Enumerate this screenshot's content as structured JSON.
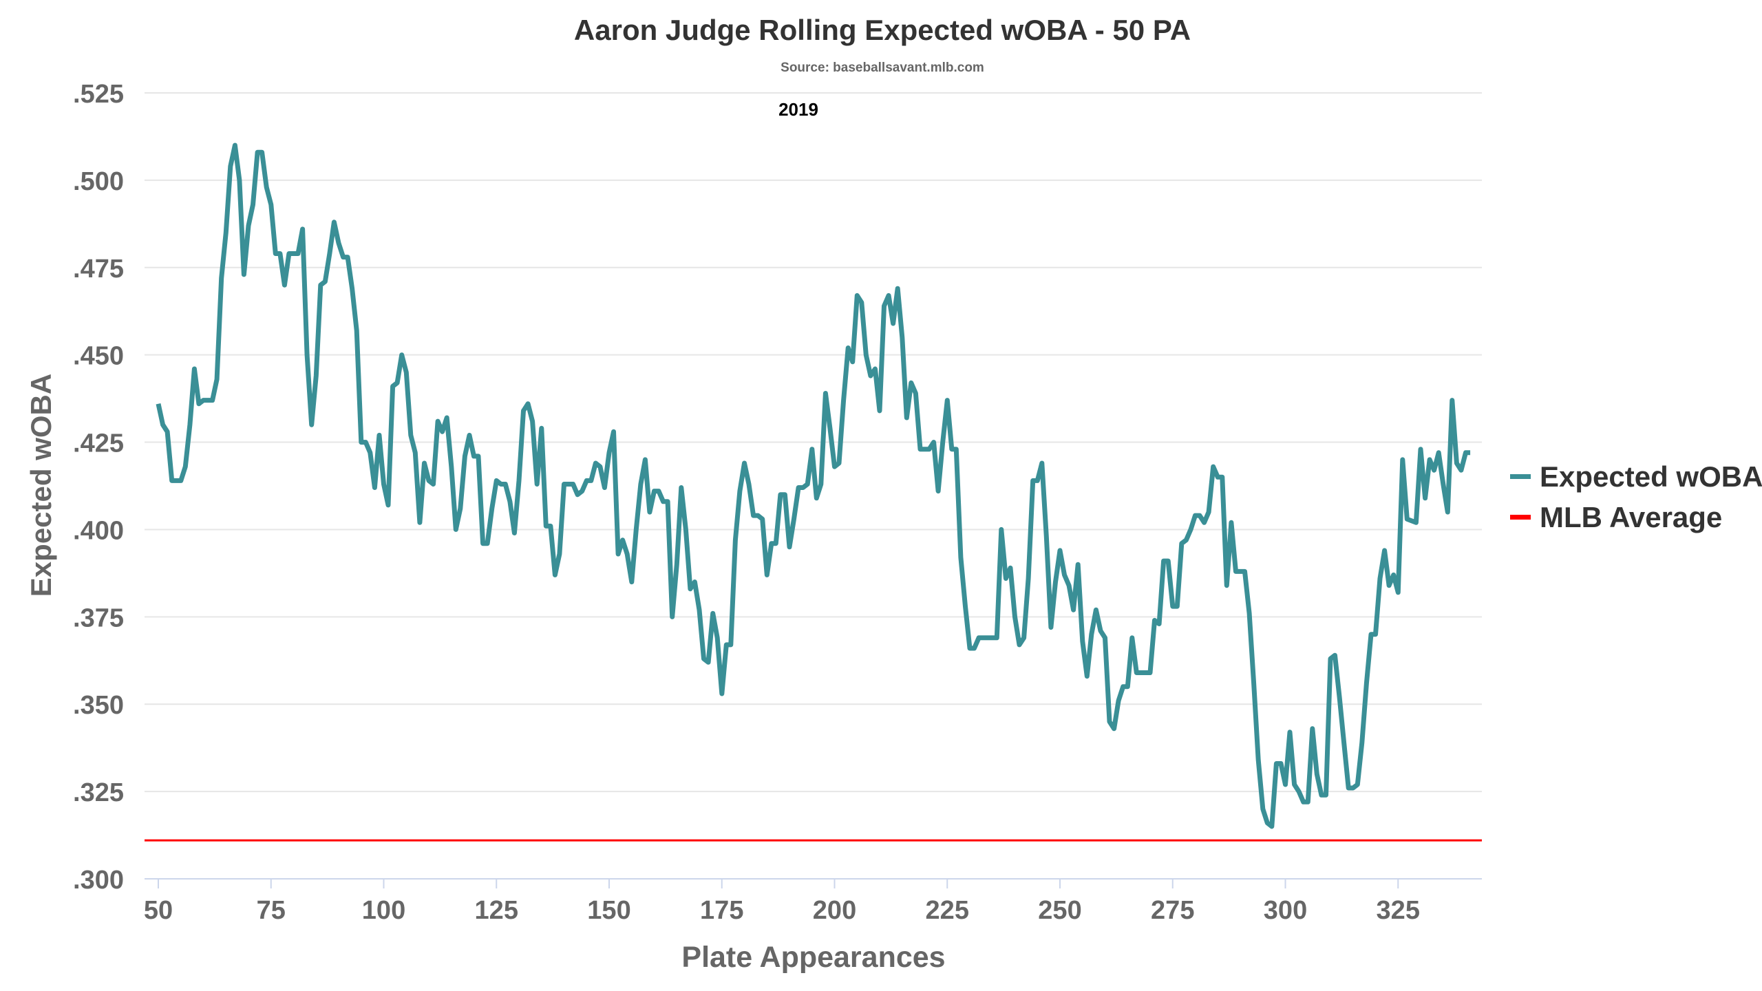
{
  "chart_data": {
    "type": "line",
    "title": "Aaron Judge Rolling Expected wOBA - 50 PA",
    "subtitle": "Source: baseballsavant.mlb.com",
    "annotation": "2019",
    "xlabel": "Plate Appearances",
    "ylabel": "Expected wOBA",
    "xlim": [
      48,
      345
    ],
    "ylim": [
      0.3,
      0.525
    ],
    "x_ticks": [
      50,
      75,
      100,
      125,
      150,
      175,
      200,
      225,
      250,
      275,
      300,
      325
    ],
    "x_tick_labels": [
      "50",
      "75",
      "100",
      "125",
      "150",
      "175",
      "200",
      "225",
      "250",
      "275",
      "300",
      "325"
    ],
    "y_ticks": [
      0.3,
      0.325,
      0.35,
      0.375,
      0.4,
      0.425,
      0.45,
      0.475,
      0.5,
      0.525
    ],
    "y_tick_labels": [
      ".300",
      ".325",
      ".350",
      ".375",
      ".400",
      ".425",
      ".450",
      ".475",
      ".500",
      ".525"
    ],
    "grid": true,
    "legend_position": "right",
    "series": [
      {
        "name": "Expected wOBA",
        "color": "#3a8f96",
        "points": [
          [
            50,
            0.436
          ],
          [
            51,
            0.43
          ],
          [
            52,
            0.428
          ],
          [
            53,
            0.414
          ],
          [
            55,
            0.414
          ],
          [
            56,
            0.418
          ],
          [
            57,
            0.43
          ],
          [
            58,
            0.446
          ],
          [
            59,
            0.436
          ],
          [
            60,
            0.437
          ],
          [
            62,
            0.437
          ],
          [
            63,
            0.443
          ],
          [
            64,
            0.472
          ],
          [
            65,
            0.485
          ],
          [
            66,
            0.504
          ],
          [
            67,
            0.51
          ],
          [
            68,
            0.5
          ],
          [
            69,
            0.473
          ],
          [
            70,
            0.487
          ],
          [
            71,
            0.493
          ],
          [
            72,
            0.508
          ],
          [
            73,
            0.508
          ],
          [
            74,
            0.498
          ],
          [
            75,
            0.493
          ],
          [
            76,
            0.479
          ],
          [
            77,
            0.479
          ],
          [
            78,
            0.47
          ],
          [
            79,
            0.479
          ],
          [
            81,
            0.479
          ],
          [
            82,
            0.486
          ],
          [
            83,
            0.45
          ],
          [
            84,
            0.43
          ],
          [
            85,
            0.444
          ],
          [
            86,
            0.47
          ],
          [
            87,
            0.471
          ],
          [
            88,
            0.479
          ],
          [
            89,
            0.488
          ],
          [
            90,
            0.482
          ],
          [
            91,
            0.478
          ],
          [
            92,
            0.478
          ],
          [
            93,
            0.469
          ],
          [
            94,
            0.457
          ],
          [
            95,
            0.425
          ],
          [
            96,
            0.425
          ],
          [
            97,
            0.422
          ],
          [
            98,
            0.412
          ],
          [
            99,
            0.427
          ],
          [
            100,
            0.413
          ],
          [
            101,
            0.407
          ],
          [
            102,
            0.441
          ],
          [
            103,
            0.442
          ],
          [
            104,
            0.45
          ],
          [
            105,
            0.445
          ],
          [
            106,
            0.427
          ],
          [
            107,
            0.422
          ],
          [
            108,
            0.402
          ],
          [
            109,
            0.419
          ],
          [
            110,
            0.414
          ],
          [
            111,
            0.413
          ],
          [
            112,
            0.431
          ],
          [
            113,
            0.428
          ],
          [
            114,
            0.432
          ],
          [
            115,
            0.418
          ],
          [
            116,
            0.4
          ],
          [
            117,
            0.406
          ],
          [
            118,
            0.421
          ],
          [
            119,
            0.427
          ],
          [
            120,
            0.421
          ],
          [
            121,
            0.421
          ],
          [
            122,
            0.396
          ],
          [
            123,
            0.396
          ],
          [
            124,
            0.406
          ],
          [
            125,
            0.414
          ],
          [
            126,
            0.413
          ],
          [
            127,
            0.413
          ],
          [
            128,
            0.408
          ],
          [
            129,
            0.399
          ],
          [
            130,
            0.414
          ],
          [
            131,
            0.434
          ],
          [
            132,
            0.436
          ],
          [
            133,
            0.431
          ],
          [
            134,
            0.413
          ],
          [
            135,
            0.429
          ],
          [
            136,
            0.401
          ],
          [
            137,
            0.401
          ],
          [
            138,
            0.387
          ],
          [
            139,
            0.393
          ],
          [
            140,
            0.413
          ],
          [
            142,
            0.413
          ],
          [
            143,
            0.41
          ],
          [
            144,
            0.411
          ],
          [
            145,
            0.414
          ],
          [
            146,
            0.414
          ],
          [
            147,
            0.419
          ],
          [
            148,
            0.418
          ],
          [
            149,
            0.412
          ],
          [
            150,
            0.422
          ],
          [
            151,
            0.428
          ],
          [
            152,
            0.393
          ],
          [
            153,
            0.397
          ],
          [
            154,
            0.393
          ],
          [
            155,
            0.385
          ],
          [
            156,
            0.4
          ],
          [
            157,
            0.413
          ],
          [
            158,
            0.42
          ],
          [
            159,
            0.405
          ],
          [
            160,
            0.411
          ],
          [
            161,
            0.411
          ],
          [
            162,
            0.408
          ],
          [
            163,
            0.408
          ],
          [
            164,
            0.375
          ],
          [
            165,
            0.39
          ],
          [
            166,
            0.412
          ],
          [
            167,
            0.4
          ],
          [
            168,
            0.383
          ],
          [
            169,
            0.385
          ],
          [
            170,
            0.377
          ],
          [
            171,
            0.363
          ],
          [
            172,
            0.362
          ],
          [
            173,
            0.376
          ],
          [
            174,
            0.369
          ],
          [
            175,
            0.353
          ],
          [
            176,
            0.367
          ],
          [
            177,
            0.367
          ],
          [
            178,
            0.397
          ],
          [
            179,
            0.411
          ],
          [
            180,
            0.419
          ],
          [
            181,
            0.413
          ],
          [
            182,
            0.404
          ],
          [
            183,
            0.404
          ],
          [
            184,
            0.403
          ],
          [
            185,
            0.387
          ],
          [
            186,
            0.396
          ],
          [
            187,
            0.396
          ],
          [
            188,
            0.41
          ],
          [
            189,
            0.41
          ],
          [
            190,
            0.395
          ],
          [
            191,
            0.403
          ],
          [
            192,
            0.412
          ],
          [
            193,
            0.412
          ],
          [
            194,
            0.413
          ],
          [
            195,
            0.423
          ],
          [
            196,
            0.409
          ],
          [
            197,
            0.413
          ],
          [
            198,
            0.439
          ],
          [
            199,
            0.429
          ],
          [
            200,
            0.418
          ],
          [
            201,
            0.419
          ],
          [
            202,
            0.437
          ],
          [
            203,
            0.452
          ],
          [
            204,
            0.448
          ],
          [
            205,
            0.467
          ],
          [
            206,
            0.465
          ],
          [
            207,
            0.45
          ],
          [
            208,
            0.444
          ],
          [
            209,
            0.446
          ],
          [
            210,
            0.434
          ],
          [
            211,
            0.464
          ],
          [
            212,
            0.467
          ],
          [
            213,
            0.459
          ],
          [
            214,
            0.469
          ],
          [
            215,
            0.455
          ],
          [
            216,
            0.432
          ],
          [
            217,
            0.442
          ],
          [
            218,
            0.439
          ],
          [
            219,
            0.423
          ],
          [
            221,
            0.423
          ],
          [
            222,
            0.425
          ],
          [
            223,
            0.411
          ],
          [
            224,
            0.425
          ],
          [
            225,
            0.437
          ],
          [
            226,
            0.423
          ],
          [
            227,
            0.423
          ],
          [
            228,
            0.392
          ],
          [
            229,
            0.378
          ],
          [
            230,
            0.366
          ],
          [
            231,
            0.366
          ],
          [
            232,
            0.369
          ],
          [
            236,
            0.369
          ],
          [
            237,
            0.4
          ],
          [
            238,
            0.386
          ],
          [
            239,
            0.389
          ],
          [
            240,
            0.375
          ],
          [
            241,
            0.367
          ],
          [
            242,
            0.369
          ],
          [
            243,
            0.386
          ],
          [
            244,
            0.414
          ],
          [
            245,
            0.414
          ],
          [
            246,
            0.419
          ],
          [
            247,
            0.398
          ],
          [
            248,
            0.372
          ],
          [
            249,
            0.385
          ],
          [
            250,
            0.394
          ],
          [
            251,
            0.387
          ],
          [
            252,
            0.384
          ],
          [
            253,
            0.377
          ],
          [
            254,
            0.39
          ],
          [
            255,
            0.368
          ],
          [
            256,
            0.358
          ],
          [
            257,
            0.37
          ],
          [
            258,
            0.377
          ],
          [
            259,
            0.371
          ],
          [
            260,
            0.369
          ],
          [
            261,
            0.345
          ],
          [
            262,
            0.343
          ],
          [
            263,
            0.351
          ],
          [
            264,
            0.355
          ],
          [
            265,
            0.355
          ],
          [
            266,
            0.369
          ],
          [
            267,
            0.359
          ],
          [
            270,
            0.359
          ],
          [
            271,
            0.374
          ],
          [
            272,
            0.373
          ],
          [
            273,
            0.391
          ],
          [
            274,
            0.391
          ],
          [
            275,
            0.378
          ],
          [
            276,
            0.378
          ],
          [
            277,
            0.396
          ],
          [
            278,
            0.397
          ],
          [
            279,
            0.4
          ],
          [
            280,
            0.404
          ],
          [
            281,
            0.404
          ],
          [
            282,
            0.402
          ],
          [
            283,
            0.405
          ],
          [
            284,
            0.418
          ],
          [
            285,
            0.415
          ],
          [
            286,
            0.415
          ],
          [
            287,
            0.384
          ],
          [
            288,
            0.402
          ],
          [
            289,
            0.388
          ],
          [
            291,
            0.388
          ],
          [
            292,
            0.376
          ],
          [
            293,
            0.356
          ],
          [
            294,
            0.334
          ],
          [
            295,
            0.32
          ],
          [
            296,
            0.316
          ],
          [
            297,
            0.315
          ],
          [
            298,
            0.333
          ],
          [
            299,
            0.333
          ],
          [
            300,
            0.327
          ],
          [
            301,
            0.342
          ],
          [
            302,
            0.327
          ],
          [
            303,
            0.325
          ],
          [
            304,
            0.322
          ],
          [
            305,
            0.322
          ],
          [
            306,
            0.343
          ],
          [
            307,
            0.33
          ],
          [
            308,
            0.324
          ],
          [
            309,
            0.324
          ],
          [
            310,
            0.363
          ],
          [
            311,
            0.364
          ],
          [
            312,
            0.352
          ],
          [
            313,
            0.339
          ],
          [
            314,
            0.326
          ],
          [
            315,
            0.326
          ],
          [
            316,
            0.327
          ],
          [
            317,
            0.339
          ],
          [
            318,
            0.356
          ],
          [
            319,
            0.37
          ],
          [
            320,
            0.37
          ],
          [
            321,
            0.386
          ],
          [
            322,
            0.394
          ],
          [
            323,
            0.384
          ],
          [
            324,
            0.387
          ],
          [
            325,
            0.382
          ],
          [
            326,
            0.42
          ],
          [
            327,
            0.403
          ],
          [
            329,
            0.402
          ],
          [
            330,
            0.423
          ],
          [
            331,
            0.409
          ],
          [
            332,
            0.42
          ],
          [
            333,
            0.417
          ],
          [
            334,
            0.422
          ],
          [
            335,
            0.413
          ],
          [
            336,
            0.405
          ],
          [
            337,
            0.437
          ],
          [
            338,
            0.419
          ],
          [
            339,
            0.417
          ],
          [
            340,
            0.422
          ],
          [
            341,
            0.422
          ]
        ]
      },
      {
        "name": "MLB Average",
        "color": "#ff0000",
        "value": 0.311
      }
    ]
  }
}
